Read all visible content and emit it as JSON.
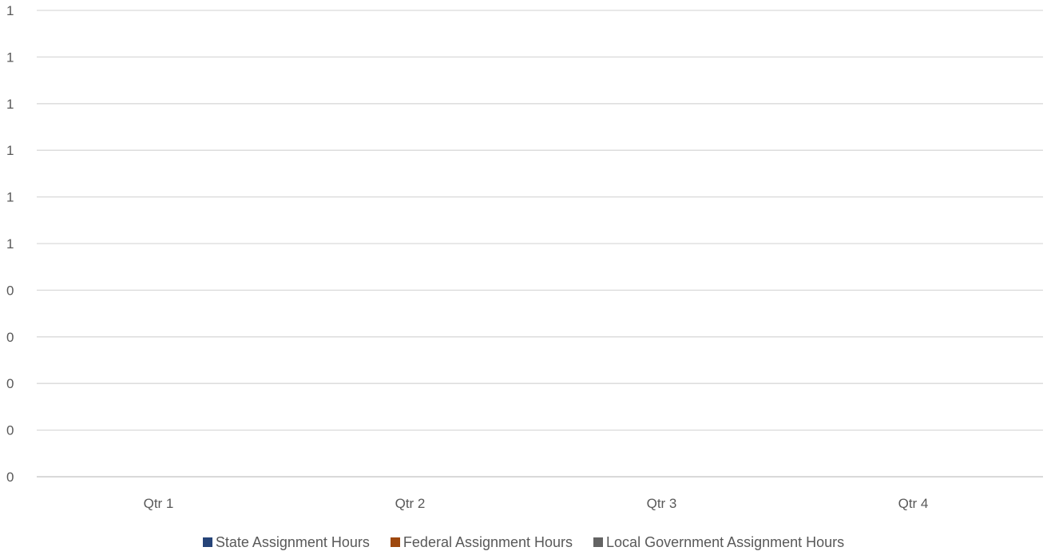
{
  "chart_data": {
    "type": "bar",
    "categories": [
      "Qtr 1",
      "Qtr 2",
      "Qtr 3",
      "Qtr 4"
    ],
    "y_tick_labels": [
      "0",
      "0",
      "0",
      "0",
      "0",
      "1",
      "1",
      "1",
      "1",
      "1",
      "1"
    ],
    "ylim": [
      0,
      1
    ],
    "grid": true,
    "legend_position": "bottom",
    "series": [
      {
        "name": "State Assignment Hours",
        "color": "#264478",
        "values": [
          0,
          0,
          0,
          0
        ]
      },
      {
        "name": "Federal Assignment Hours",
        "color": "#9E480E",
        "values": [
          0,
          0,
          0,
          0
        ]
      },
      {
        "name": "Local Government Assignment Hours",
        "color": "#636363",
        "values": [
          0,
          0,
          0,
          0
        ]
      }
    ],
    "gridline_color": "#d9d9d9",
    "text_color": "#595959"
  }
}
